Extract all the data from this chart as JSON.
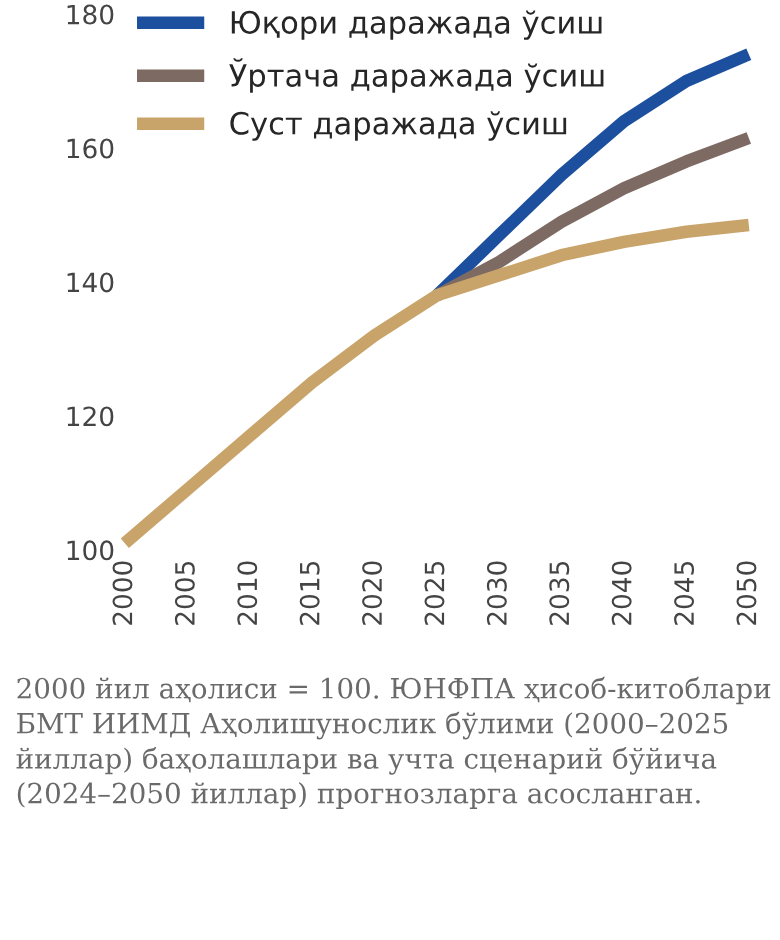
{
  "chart_data": {
    "type": "line",
    "x": [
      2000,
      2005,
      2010,
      2015,
      2020,
      2025,
      2030,
      2035,
      2040,
      2045,
      2050
    ],
    "series": [
      {
        "name": "Юқори даражада ўсиш",
        "color": "#1d4f9f",
        "values": [
          null,
          null,
          null,
          null,
          null,
          138,
          147,
          156,
          164,
          170,
          174
        ]
      },
      {
        "name": "Ўртача даражада ўсиш",
        "color": "#7d6a63",
        "values": [
          null,
          null,
          null,
          null,
          null,
          138,
          143,
          149,
          154,
          158,
          161.5
        ]
      },
      {
        "name": "Суст даражада ўсиш",
        "color": "#c9a46a",
        "values": [
          101,
          109,
          117,
          125,
          132,
          138,
          141,
          144,
          146,
          147.5,
          148.5
        ]
      }
    ],
    "xlim": [
      2000,
      2050
    ],
    "ylim": [
      100,
      180
    ],
    "xticks": [
      2000,
      2005,
      2010,
      2015,
      2020,
      2025,
      2030,
      2035,
      2040,
      2045,
      2050
    ],
    "yticks": [
      100,
      120,
      140,
      160,
      180
    ],
    "grid": false,
    "legend": "top left",
    "marker": "none",
    "line_style": "solid",
    "annotations": [
      "2000 йил аҳолиси = 100. ЮНФПА ҳисоб-китоблари БМТ ИИМД Аҳолишунослик бўлими (2000–2025 йиллар) баҳолашлари ва учта сценарий бўйича (2024–2050 йиллар) прогнозларга асосланган."
    ]
  }
}
